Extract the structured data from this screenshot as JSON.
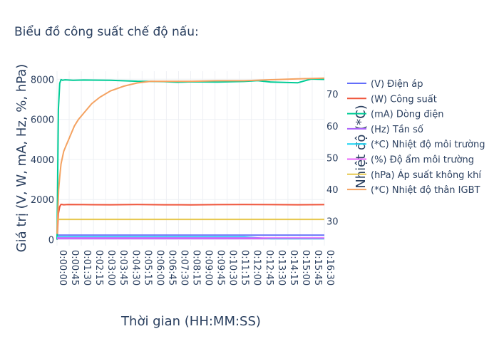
{
  "chart_data": {
    "type": "line",
    "title": "Biểu đồ công suất chế độ nấu:",
    "xlabel": "Thời gian (HH:MM:SS)",
    "ylabel": "Giá trị (V, W, mA, Hz, %, hPa)",
    "y2label": "Nhiệt độ (*C)",
    "x_ticks": [
      "0:00:00",
      "0:00:45",
      "0:01:30",
      "0:02:15",
      "0:03:00",
      "0:03:45",
      "0:04:30",
      "0:05:15",
      "0:06:00",
      "0:06:45",
      "0:07:30",
      "0:08:15",
      "0:09:00",
      "0:09:45",
      "0:10:30",
      "0:11:15",
      "0:12:00",
      "0:12:45",
      "0:13:30",
      "0:14:15",
      "0:15:00",
      "0:15:45",
      "0:16:30"
    ],
    "xlim": [
      0,
      1000
    ],
    "ylim": [
      -300,
      8400
    ],
    "y_ticks": [
      0,
      2000,
      4000,
      6000,
      8000
    ],
    "y2lim": [
      22.3,
      77.2
    ],
    "y2_ticks": [
      30,
      40,
      50,
      60,
      70
    ],
    "legend_position": "right",
    "grid": true,
    "series": [
      {
        "name": "(V) Điện áp",
        "axis": "y",
        "color": "#636efa",
        "x": [
          0,
          1000
        ],
        "y": [
          225,
          225
        ]
      },
      {
        "name": "(W) Công suất",
        "axis": "y",
        "color": "#ef553b",
        "x": [
          0,
          5,
          10,
          15,
          25,
          40,
          100,
          200,
          300,
          400,
          500,
          600,
          700,
          800,
          900,
          1000
        ],
        "y": [
          0,
          1300,
          1650,
          1760,
          1740,
          1750,
          1745,
          1740,
          1750,
          1740,
          1735,
          1745,
          1750,
          1745,
          1740,
          1745
        ]
      },
      {
        "name": "(mA) Dòng điện",
        "axis": "y",
        "color": "#00cc96",
        "x": [
          0,
          5,
          10,
          15,
          20,
          30,
          60,
          100,
          200,
          300,
          400,
          450,
          500,
          600,
          700,
          750,
          800,
          900,
          950,
          1000
        ],
        "y": [
          0,
          6500,
          7800,
          7980,
          7950,
          7970,
          7950,
          7960,
          7950,
          7900,
          7880,
          7850,
          7870,
          7860,
          7890,
          7930,
          7860,
          7820,
          8010,
          7990
        ]
      },
      {
        "name": "(Hz) Tần số",
        "axis": "y",
        "color": "#ab63fa",
        "x": [
          0,
          1000
        ],
        "y": [
          50,
          50
        ]
      },
      {
        "name": "(*C) Nhiệt độ môi trường",
        "axis": "y",
        "color": "#19d3f3",
        "x": [
          0,
          700,
          750,
          800,
          1000
        ],
        "y": [
          130,
          130,
          90,
          50,
          50
        ]
      },
      {
        "name": "(%) Độ ẩm môi trường",
        "axis": "y",
        "color": "#e763fa",
        "x": [
          0,
          1000
        ],
        "y": [
          80,
          80
        ]
      },
      {
        "name": "(hPa) Áp suất không khí",
        "axis": "y",
        "color": "#e6c84f",
        "x": [
          0,
          1000
        ],
        "y": [
          1010,
          1010
        ]
      },
      {
        "name": "(*C) Nhiệt độ thân IGBT",
        "axis": "y2",
        "color": "#f4a261",
        "x": [
          0,
          3,
          6,
          10,
          15,
          25,
          35,
          45,
          55,
          65,
          80,
          100,
          130,
          160,
          200,
          250,
          300,
          350,
          400,
          500,
          600,
          700,
          800,
          900,
          1000
        ],
        "y": [
          26,
          32,
          40,
          44,
          48,
          52,
          54,
          56,
          58,
          60,
          62,
          64,
          67,
          69,
          71,
          72.5,
          73.5,
          74,
          74,
          74,
          74.2,
          74.2,
          74.5,
          74.8,
          75
        ]
      }
    ]
  }
}
